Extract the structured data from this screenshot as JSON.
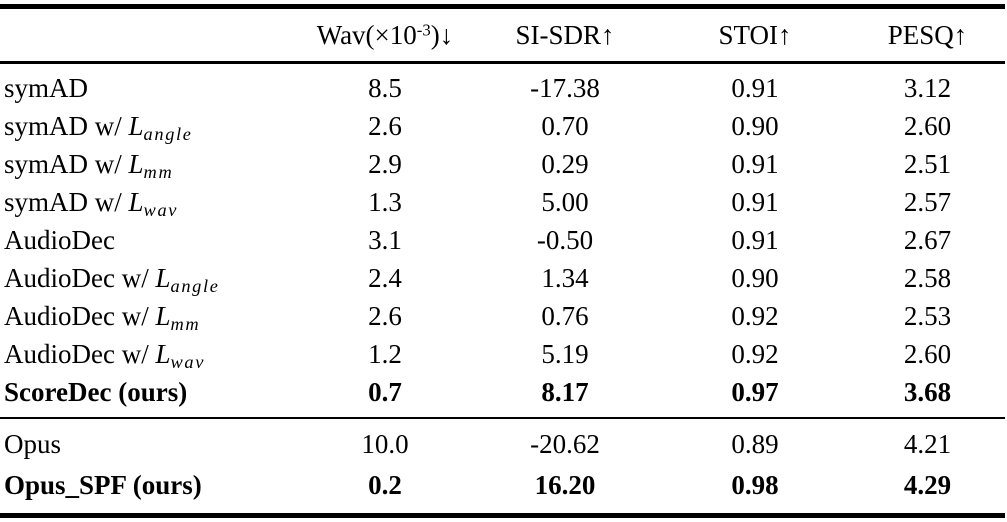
{
  "table": {
    "header": {
      "label_col": "",
      "wav_prefix": "Wav(×10",
      "wav_sup": "-3",
      "wav_suffix": ")↓",
      "sisdr": "SI-SDR↑",
      "stoi": "STOI↑",
      "pesq": "PESQ↑"
    },
    "rows": [
      {
        "label_prefix": "symAD",
        "math_var": "",
        "math_sub": "",
        "wav": "8.5",
        "sisdr": "-17.38",
        "stoi": "0.91",
        "pesq": "3.12"
      },
      {
        "label_prefix": "symAD w/ ",
        "math_var": "L",
        "math_sub": "angle",
        "wav": "2.6",
        "sisdr": "0.70",
        "stoi": "0.90",
        "pesq": "2.60"
      },
      {
        "label_prefix": "symAD w/ ",
        "math_var": "L",
        "math_sub": "mm",
        "wav": "2.9",
        "sisdr": "0.29",
        "stoi": "0.91",
        "pesq": "2.51"
      },
      {
        "label_prefix": "symAD w/ ",
        "math_var": "L",
        "math_sub": "wav",
        "wav": "1.3",
        "sisdr": "5.00",
        "stoi": "0.91",
        "pesq": "2.57"
      },
      {
        "label_prefix": "AudioDec",
        "math_var": "",
        "math_sub": "",
        "wav": "3.1",
        "sisdr": "-0.50",
        "stoi": "0.91",
        "pesq": "2.67"
      },
      {
        "label_prefix": "AudioDec w/ ",
        "math_var": "L",
        "math_sub": "angle",
        "wav": "2.4",
        "sisdr": "1.34",
        "stoi": "0.90",
        "pesq": "2.58"
      },
      {
        "label_prefix": "AudioDec w/ ",
        "math_var": "L",
        "math_sub": "mm",
        "wav": "2.6",
        "sisdr": "0.76",
        "stoi": "0.92",
        "pesq": "2.53"
      },
      {
        "label_prefix": "AudioDec w/ ",
        "math_var": "L",
        "math_sub": "wav",
        "wav": "1.2",
        "sisdr": "5.19",
        "stoi": "0.92",
        "pesq": "2.60"
      },
      {
        "label_prefix": "ScoreDec (ours)",
        "math_var": "",
        "math_sub": "",
        "wav": "0.7",
        "sisdr": "8.17",
        "stoi": "0.97",
        "pesq": "3.68"
      },
      {
        "label_prefix": "Opus",
        "math_var": "",
        "math_sub": "",
        "wav": "10.0",
        "sisdr": "-20.62",
        "stoi": "0.89",
        "pesq": "4.21"
      },
      {
        "label_prefix": "Opus_SPF (ours)",
        "math_var": "",
        "math_sub": "",
        "wav": "0.2",
        "sisdr": "16.20",
        "stoi": "0.98",
        "pesq": "4.29"
      }
    ]
  }
}
